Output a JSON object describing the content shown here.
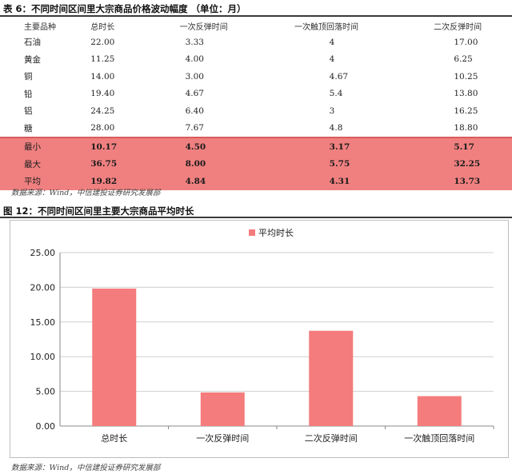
{
  "table": {
    "title": "表 6：不同时间区间里大宗商品价格波动幅度 （单位：月）",
    "headers": [
      "主要品种",
      "总时长",
      "一次反弹时间",
      "一次触顶回落时间",
      "二次反弹时间"
    ],
    "rows": [
      [
        "石油",
        "22.00",
        "3.33",
        "4",
        "17.00"
      ],
      [
        "黄金",
        "11.25",
        "4.00",
        "4",
        "6.25"
      ],
      [
        "铜",
        "14.00",
        "3.00",
        "4.67",
        "10.25"
      ],
      [
        "铅",
        "19.40",
        "4.67",
        "5.4",
        "13.80"
      ],
      [
        "铝",
        "24.25",
        "6.40",
        "3",
        "16.25"
      ],
      [
        "糖",
        "28.00",
        "7.67",
        "4.8",
        "18.80"
      ]
    ],
    "summary_rows": [
      [
        "最小",
        "10.17",
        "4.50",
        "3.17",
        "5.17"
      ],
      [
        "最大",
        "36.75",
        "8.00",
        "5.75",
        "32.25"
      ],
      [
        "平均",
        "19.82",
        "4.84",
        "4.31",
        "13.73"
      ]
    ],
    "highlight_color": "#f08080",
    "source": "数据来源：Wind，中信建投证券研究发展部"
  },
  "figure": {
    "title": "图 12：不同时间区间里主要大宗商品平均时长",
    "source": "数据来源：Wind，中信建投证券研究发展部"
  },
  "chart_data": {
    "type": "bar",
    "title": "",
    "xlabel": "",
    "ylabel": "",
    "categories": [
      "总时长",
      "一次反弹时间",
      "二次反弹时间",
      "一次触顶回落时间"
    ],
    "series": [
      {
        "name": "平均时长",
        "values": [
          19.82,
          4.84,
          13.73,
          4.31
        ],
        "color": "#f47c7c"
      }
    ],
    "ylim": [
      0,
      25
    ],
    "yticks": [
      "0.00",
      "5.00",
      "10.00",
      "15.00",
      "20.00",
      "25.00"
    ],
    "grid": true,
    "legend": "top-center"
  }
}
